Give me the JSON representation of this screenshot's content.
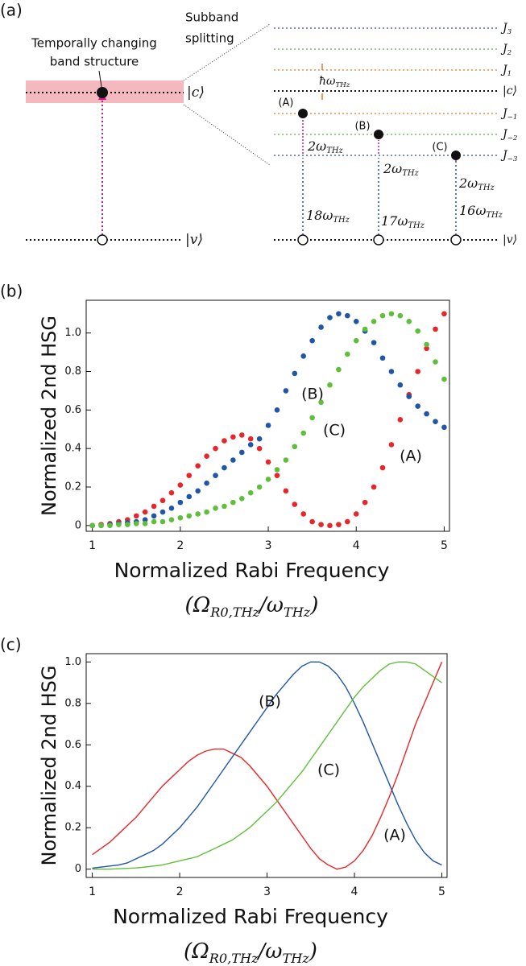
{
  "figure_a": {
    "panel_label": "(a)",
    "subband_label": [
      "Subband",
      "splitting"
    ],
    "band_label": [
      "Temporally changing",
      "band structure"
    ],
    "left_levels": [
      [
        "|c⟩"
      ],
      [
        "|v⟩"
      ]
    ],
    "levels": [
      [
        "J",
        "3"
      ],
      [
        "J",
        "2"
      ],
      [
        "J",
        "1"
      ],
      [
        "|c⟩"
      ],
      [
        "J",
        "−1"
      ],
      [
        "J",
        "−2"
      ],
      [
        "J",
        "−3"
      ],
      [
        "|v⟩"
      ]
    ],
    "spacing_label": [
      "ħω",
      "THz"
    ],
    "transitions": [
      {
        "label": "(A)",
        "upper": [
          "2ω",
          "THz"
        ],
        "lower": [
          "18ω",
          "THz"
        ]
      },
      {
        "label": "(B)",
        "upper": [
          "2ω",
          "THz"
        ],
        "lower": [
          "17ω",
          "THz"
        ]
      },
      {
        "label": "(C)",
        "upper": [
          "2ω",
          "THz"
        ],
        "lower": [
          "16ω",
          "THz"
        ]
      }
    ]
  },
  "chart_data": [
    {
      "type": "scatter",
      "panel_label": "(b)",
      "y_label": "Normalized 2nd HSG",
      "x_label": "Normalized Rabi Frequency",
      "x_label_2": [
        "(Ω",
        "R0,THz",
        "/ω",
        "THz",
        ")"
      ],
      "x": [
        1.0,
        1.1,
        1.2,
        1.3,
        1.4,
        1.5,
        1.6,
        1.7,
        1.8,
        1.9,
        2.0,
        2.1,
        2.2,
        2.3,
        2.4,
        2.5,
        2.6,
        2.7,
        2.8,
        2.9,
        3.0,
        3.1,
        3.2,
        3.3,
        3.4,
        3.5,
        3.6,
        3.7,
        3.8,
        3.9,
        4.0,
        4.1,
        4.2,
        4.3,
        4.4,
        4.5,
        4.6,
        4.7,
        4.8,
        4.9,
        5.0
      ],
      "series": [
        {
          "name": "(A)",
          "color": "#e8262a",
          "values": [
            0,
            0.005,
            0.01,
            0.02,
            0.03,
            0.05,
            0.07,
            0.1,
            0.13,
            0.17,
            0.21,
            0.26,
            0.31,
            0.36,
            0.4,
            0.44,
            0.46,
            0.47,
            0.45,
            0.4,
            0.33,
            0.26,
            0.18,
            0.11,
            0.06,
            0.02,
            0.005,
            0,
            0.005,
            0.02,
            0.06,
            0.12,
            0.2,
            0.3,
            0.42,
            0.55,
            0.68,
            0.8,
            0.92,
            1.02,
            1.1
          ]
        },
        {
          "name": "(B)",
          "color": "#1f56a8",
          "values": [
            0,
            0,
            0.005,
            0.01,
            0.015,
            0.02,
            0.03,
            0.05,
            0.07,
            0.09,
            0.12,
            0.15,
            0.18,
            0.22,
            0.26,
            0.3,
            0.34,
            0.38,
            0.42,
            0.45,
            0.52,
            0.6,
            0.7,
            0.79,
            0.88,
            0.96,
            1.03,
            1.08,
            1.1,
            1.09,
            1.06,
            1.01,
            0.95,
            0.87,
            0.8,
            0.73,
            0.67,
            0.62,
            0.58,
            0.54,
            0.51
          ]
        },
        {
          "name": "(C)",
          "color": "#5fbf3a",
          "values": [
            0,
            0,
            0,
            0.005,
            0.005,
            0.01,
            0.01,
            0.02,
            0.02,
            0.03,
            0.04,
            0.05,
            0.06,
            0.07,
            0.09,
            0.1,
            0.12,
            0.14,
            0.17,
            0.2,
            0.24,
            0.29,
            0.34,
            0.41,
            0.48,
            0.56,
            0.64,
            0.73,
            0.81,
            0.89,
            0.96,
            1.02,
            1.06,
            1.09,
            1.1,
            1.09,
            1.06,
            1.01,
            0.94,
            0.85,
            0.76
          ]
        }
      ],
      "xlim": [
        0.93,
        5.06
      ],
      "ylim": [
        -0.03,
        1.17
      ],
      "xticks": [
        1,
        2,
        3,
        4,
        5
      ],
      "yticks": [
        0,
        0.2,
        0.4,
        0.6,
        0.8,
        {
          "value": 1,
          "label": "1.0"
        }
      ]
    },
    {
      "type": "line",
      "panel_label": "(c)",
      "y_label": "Normalized 2nd HSG",
      "x_label": "Normalized Rabi Frequency",
      "x_label_2": [
        "(Ω",
        "R0,THz",
        "/ω",
        "THz",
        ")"
      ],
      "x": [
        1.0,
        1.1,
        1.2,
        1.3,
        1.4,
        1.5,
        1.6,
        1.7,
        1.8,
        1.9,
        2.0,
        2.1,
        2.2,
        2.3,
        2.4,
        2.5,
        2.6,
        2.7,
        2.8,
        2.9,
        3.0,
        3.1,
        3.2,
        3.3,
        3.4,
        3.5,
        3.6,
        3.7,
        3.8,
        3.9,
        4.0,
        4.1,
        4.2,
        4.3,
        4.4,
        4.5,
        4.6,
        4.7,
        4.8,
        4.9,
        5.0
      ],
      "series": [
        {
          "name": "(A)",
          "color": "#e8262a",
          "values": [
            0.07,
            0.1,
            0.13,
            0.17,
            0.21,
            0.25,
            0.3,
            0.35,
            0.4,
            0.44,
            0.48,
            0.52,
            0.55,
            0.57,
            0.58,
            0.58,
            0.56,
            0.54,
            0.5,
            0.45,
            0.4,
            0.34,
            0.28,
            0.22,
            0.16,
            0.1,
            0.05,
            0.02,
            0,
            0.01,
            0.04,
            0.09,
            0.16,
            0.25,
            0.35,
            0.46,
            0.58,
            0.7,
            0.8,
            0.9,
            1.0
          ]
        },
        {
          "name": "(B)",
          "color": "#1f56a8",
          "values": [
            0.005,
            0.01,
            0.015,
            0.02,
            0.03,
            0.05,
            0.07,
            0.09,
            0.12,
            0.16,
            0.2,
            0.25,
            0.3,
            0.36,
            0.42,
            0.48,
            0.54,
            0.6,
            0.66,
            0.72,
            0.78,
            0.84,
            0.89,
            0.94,
            0.98,
            1.0,
            1.0,
            0.98,
            0.94,
            0.88,
            0.8,
            0.71,
            0.61,
            0.51,
            0.41,
            0.31,
            0.22,
            0.14,
            0.08,
            0.04,
            0.02
          ]
        },
        {
          "name": "(C)",
          "color": "#5fbf3a",
          "values": [
            0,
            0,
            0,
            0.002,
            0.004,
            0.006,
            0.01,
            0.015,
            0.02,
            0.03,
            0.04,
            0.05,
            0.06,
            0.08,
            0.1,
            0.12,
            0.14,
            0.17,
            0.2,
            0.24,
            0.28,
            0.32,
            0.37,
            0.42,
            0.47,
            0.53,
            0.59,
            0.65,
            0.71,
            0.77,
            0.83,
            0.88,
            0.92,
            0.96,
            0.99,
            1.0,
            1.0,
            0.99,
            0.96,
            0.93,
            0.9
          ]
        }
      ],
      "xlim": [
        0.93,
        5.06
      ],
      "ylim": [
        -0.04,
        1.04
      ],
      "xticks": [
        1,
        2,
        3,
        4,
        5
      ],
      "yticks": [
        0,
        0.2,
        0.4,
        0.6,
        0.8,
        {
          "value": 1,
          "label": "1.0"
        }
      ]
    }
  ]
}
